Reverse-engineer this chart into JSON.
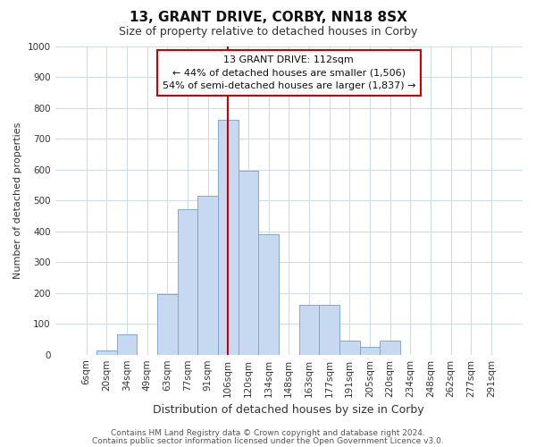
{
  "title": "13, GRANT DRIVE, CORBY, NN18 8SX",
  "subtitle": "Size of property relative to detached houses in Corby",
  "xlabel": "Distribution of detached houses by size in Corby",
  "ylabel": "Number of detached properties",
  "footer_line1": "Contains HM Land Registry data © Crown copyright and database right 2024.",
  "footer_line2": "Contains public sector information licensed under the Open Government Licence v3.0.",
  "bar_labels": [
    "6sqm",
    "20sqm",
    "34sqm",
    "49sqm",
    "63sqm",
    "77sqm",
    "91sqm",
    "106sqm",
    "120sqm",
    "134sqm",
    "148sqm",
    "163sqm",
    "177sqm",
    "191sqm",
    "205sqm",
    "220sqm",
    "234sqm",
    "248sqm",
    "262sqm",
    "277sqm",
    "291sqm"
  ],
  "bar_values": [
    0,
    15,
    65,
    0,
    195,
    470,
    515,
    760,
    595,
    390,
    0,
    160,
    160,
    45,
    25,
    45,
    0,
    0,
    0,
    0,
    0
  ],
  "bar_color": "#c6d9f0",
  "bar_edge_color": "#7faacc",
  "vline_color": "#cc0000",
  "vline_x": 7,
  "ylim": [
    0,
    1000
  ],
  "yticks": [
    0,
    100,
    200,
    300,
    400,
    500,
    600,
    700,
    800,
    900,
    1000
  ],
  "annotation_title": "13 GRANT DRIVE: 112sqm",
  "annotation_line1": "← 44% of detached houses are smaller (1,506)",
  "annotation_line2": "54% of semi-detached houses are larger (1,837) →",
  "annotation_box_facecolor": "#ffffff",
  "annotation_box_edgecolor": "#cc0000",
  "grid_color": "#d0dce8",
  "title_fontsize": 11,
  "subtitle_fontsize": 9,
  "ylabel_fontsize": 8,
  "xlabel_fontsize": 9,
  "tick_fontsize": 7.5,
  "footer_fontsize": 6.5
}
